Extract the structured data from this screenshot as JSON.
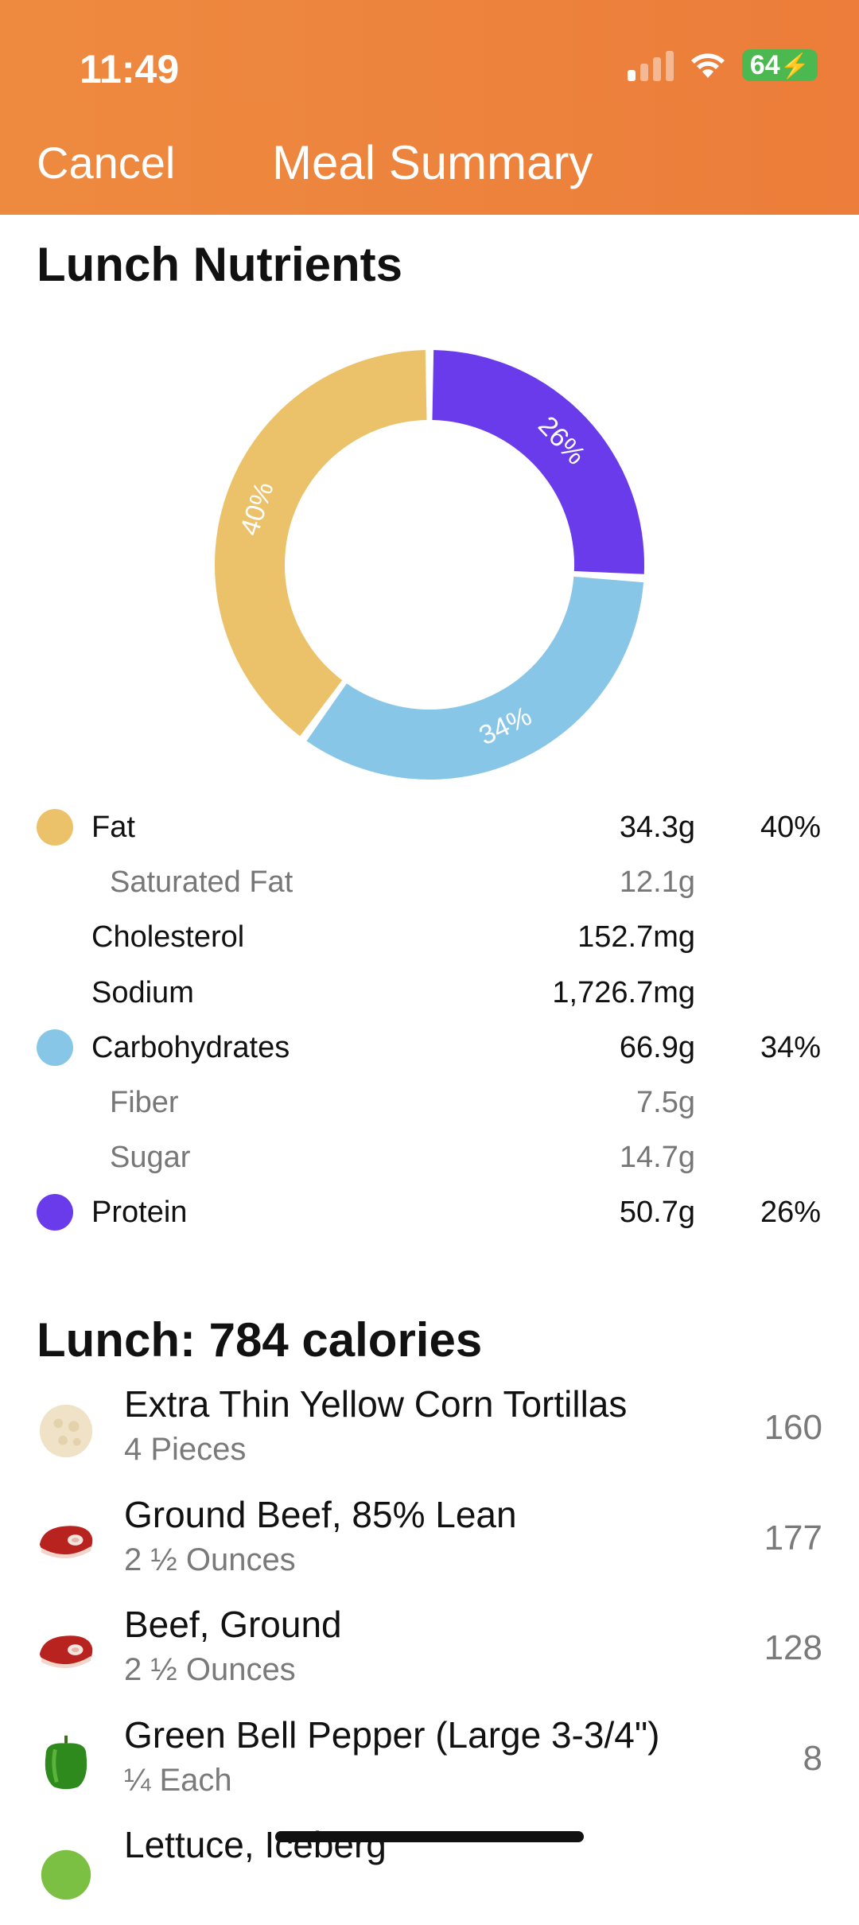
{
  "status_bar": {
    "time": "11:49",
    "battery": "64"
  },
  "nav": {
    "cancel_label": "Cancel",
    "title": "Meal Summary"
  },
  "nutrients": {
    "heading": "Lunch Nutrients",
    "rows": [
      {
        "name": "Fat",
        "amount": "34.3g",
        "percent": "40%",
        "color": "#ebc26a",
        "sub": false
      },
      {
        "name": "Saturated Fat",
        "amount": "12.1g",
        "percent": "",
        "sub": true
      },
      {
        "name": "Cholesterol",
        "amount": "152.7mg",
        "percent": "",
        "sub": false
      },
      {
        "name": "Sodium",
        "amount": "1,726.7mg",
        "percent": "",
        "sub": false
      },
      {
        "name": "Carbohydrates",
        "amount": "66.9g",
        "percent": "34%",
        "color": "#88c6e8",
        "sub": false
      },
      {
        "name": "Fiber",
        "amount": "7.5g",
        "percent": "",
        "sub": true
      },
      {
        "name": "Sugar",
        "amount": "14.7g",
        "percent": "",
        "sub": true
      },
      {
        "name": "Protein",
        "amount": "50.7g",
        "percent": "26%",
        "color": "#6a3beb",
        "sub": false
      }
    ]
  },
  "chart_data": {
    "type": "pie",
    "categories": [
      "Protein",
      "Carbohydrates",
      "Fat"
    ],
    "values": [
      26,
      34,
      40
    ],
    "labels": [
      "26%",
      "34%",
      "40%"
    ],
    "colors": [
      "#6a3beb",
      "#88c6e8",
      "#ebc26a"
    ]
  },
  "meal": {
    "heading": "Lunch: 784 calories",
    "items": [
      {
        "name": "Extra Thin Yellow Corn Tortillas",
        "quantity": "4 Pieces",
        "calories": "160",
        "icon": "tortilla-icon"
      },
      {
        "name": "Ground Beef, 85% Lean",
        "quantity": "2 ½ Ounces",
        "calories": "177",
        "icon": "beef-icon"
      },
      {
        "name": "Beef, Ground",
        "quantity": "2 ½ Ounces",
        "calories": "128",
        "icon": "beef-icon"
      },
      {
        "name": "Green Bell Pepper (Large 3-3/4\")",
        "quantity": "¼ Each",
        "calories": "8",
        "icon": "bell-pepper-icon"
      },
      {
        "name": "Lettuce, Iceberg",
        "quantity": "",
        "calories": "",
        "icon": "lettuce-icon"
      }
    ]
  }
}
